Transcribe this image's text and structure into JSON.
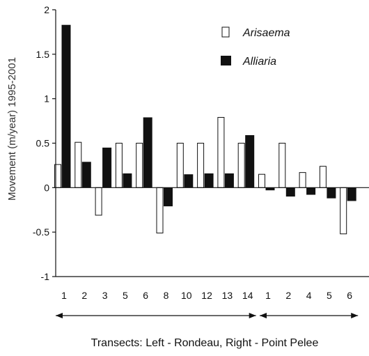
{
  "chart_data": {
    "type": "bar",
    "categories": [
      "1",
      "2",
      "3",
      "5",
      "6",
      "8",
      "10",
      "12",
      "13",
      "14",
      "1",
      "2",
      "4",
      "5",
      "6"
    ],
    "series": [
      {
        "name": "Arisaema",
        "style": "outline",
        "values": [
          0.26,
          0.51,
          -0.31,
          0.5,
          0.5,
          -0.51,
          0.5,
          0.5,
          0.79,
          0.5,
          0.15,
          0.5,
          0.17,
          0.24,
          -0.52
        ]
      },
      {
        "name": "Alliaria",
        "style": "solid",
        "values": [
          1.83,
          0.29,
          0.45,
          0.16,
          0.79,
          -0.21,
          0.15,
          0.16,
          0.16,
          0.59,
          -0.03,
          -0.1,
          -0.08,
          -0.12,
          -0.15
        ]
      }
    ],
    "ylabel": "Movement (m/year) 1995-2001",
    "xlabel": "Transects: Left - Rondeau, Right - Point Pelee",
    "ylim": [
      -1,
      2
    ],
    "yticks": [
      -1,
      -0.5,
      0,
      0.5,
      1,
      1.5,
      2
    ],
    "ytick_labels": [
      "-1",
      "-0.5",
      "0",
      "0.5",
      "1",
      "1.5",
      "2"
    ],
    "grid": false,
    "legend_position": "top-right",
    "group_arrows": [
      {
        "from_index": 0,
        "to_index": 9
      },
      {
        "from_index": 10,
        "to_index": 14
      }
    ],
    "colors": {
      "solid": "#111111",
      "outline": "#111111"
    }
  }
}
